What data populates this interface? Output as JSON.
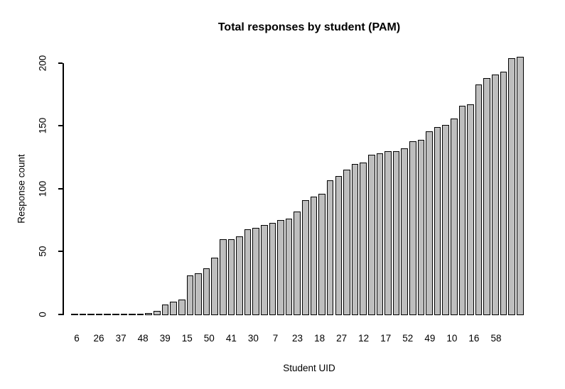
{
  "chart_data": {
    "type": "bar",
    "title": "Total responses by student (PAM)",
    "xlabel": "Student UID",
    "ylabel": "Response count",
    "x_tick_labels": [
      "6",
      "26",
      "37",
      "48",
      "39",
      "15",
      "50",
      "41",
      "30",
      "7",
      "23",
      "18",
      "27",
      "12",
      "17",
      "52",
      "49",
      "10",
      "16",
      "58"
    ],
    "y_ticks": [
      0,
      50,
      100,
      150,
      200
    ],
    "ylim": [
      0,
      205
    ],
    "grid": false,
    "legend": false,
    "bar_color": "#BEBEBE",
    "bar_border_color": "#000000",
    "background_color": "#FFFFFF",
    "values": [
      0,
      0,
      0,
      0,
      0,
      0,
      0,
      0,
      0,
      1,
      3,
      8,
      10,
      12,
      31,
      33,
      37,
      45,
      60,
      60,
      62,
      68,
      69,
      71,
      73,
      75,
      76,
      82,
      91,
      94,
      96,
      107,
      110,
      115,
      120,
      121,
      127,
      128,
      130,
      130,
      132,
      138,
      139,
      146,
      149,
      151,
      156,
      166,
      167,
      183,
      188,
      191,
      193,
      204,
      205
    ]
  }
}
